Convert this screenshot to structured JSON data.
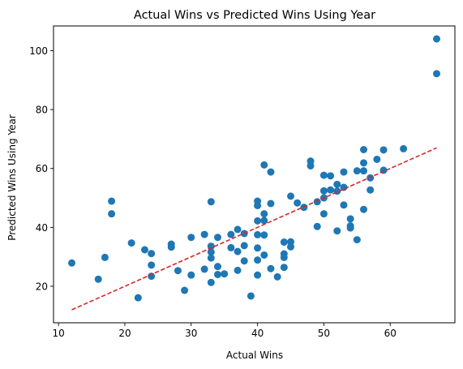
{
  "chart_data": {
    "type": "scatter",
    "title": "Actual Wins vs Predicted Wins Using Year",
    "xlabel": "Actual Wins",
    "ylabel": "Predicted Wins Using Year",
    "xlim": [
      9.25,
      69.75
    ],
    "ylim": [
      7.6,
      108.4
    ],
    "xticks": [
      10,
      20,
      30,
      40,
      50,
      60
    ],
    "yticks": [
      20,
      40,
      60,
      80,
      100
    ],
    "grid": false,
    "colors": {
      "points": "#1f77b4",
      "reference_line": "#d62728"
    },
    "points": [
      [
        12,
        27.9
      ],
      [
        16,
        22.4
      ],
      [
        17,
        29.8
      ],
      [
        18,
        48.9
      ],
      [
        18,
        44.6
      ],
      [
        21,
        34.7
      ],
      [
        22,
        16.1
      ],
      [
        23,
        32.4
      ],
      [
        24,
        31.1
      ],
      [
        24,
        27.2
      ],
      [
        24,
        23.4
      ],
      [
        27,
        34.3
      ],
      [
        27,
        33.3
      ],
      [
        28,
        25.3
      ],
      [
        29,
        18.6
      ],
      [
        30,
        36.6
      ],
      [
        30,
        23.8
      ],
      [
        32,
        37.6
      ],
      [
        32,
        25.8
      ],
      [
        33,
        48.7
      ],
      [
        33,
        33.6
      ],
      [
        33,
        31.6
      ],
      [
        33,
        29.6
      ],
      [
        33,
        21.3
      ],
      [
        34,
        36.6
      ],
      [
        34,
        26.7
      ],
      [
        34,
        24.0
      ],
      [
        35,
        24.2
      ],
      [
        36,
        37.6
      ],
      [
        36,
        33.1
      ],
      [
        37,
        39.3
      ],
      [
        37,
        31.8
      ],
      [
        37,
        25.4
      ],
      [
        38,
        37.9
      ],
      [
        38,
        33.8
      ],
      [
        38,
        28.6
      ],
      [
        39,
        16.7
      ],
      [
        40,
        48.9
      ],
      [
        40,
        47.4
      ],
      [
        40,
        42.2
      ],
      [
        40,
        37.5
      ],
      [
        40,
        33.0
      ],
      [
        40,
        28.9
      ],
      [
        40,
        23.8
      ],
      [
        41,
        61.2
      ],
      [
        41,
        44.6
      ],
      [
        41,
        42.3
      ],
      [
        41,
        37.4
      ],
      [
        41,
        30.6
      ],
      [
        42,
        58.8
      ],
      [
        42,
        48.1
      ],
      [
        42,
        26.0
      ],
      [
        43,
        23.2
      ],
      [
        44,
        35.0
      ],
      [
        44,
        31.0
      ],
      [
        44,
        29.8
      ],
      [
        44,
        26.4
      ],
      [
        45,
        50.6
      ],
      [
        45,
        35.1
      ],
      [
        45,
        33.4
      ],
      [
        46,
        48.3
      ],
      [
        47,
        46.8
      ],
      [
        48,
        62.5
      ],
      [
        48,
        60.9
      ],
      [
        49,
        48.7
      ],
      [
        49,
        40.3
      ],
      [
        50,
        57.7
      ],
      [
        50,
        52.4
      ],
      [
        50,
        50.0
      ],
      [
        50,
        44.6
      ],
      [
        51,
        57.5
      ],
      [
        51,
        52.7
      ],
      [
        52,
        54.6
      ],
      [
        52,
        52.3
      ],
      [
        52,
        38.8
      ],
      [
        53,
        58.8
      ],
      [
        53,
        53.6
      ],
      [
        53,
        47.6
      ],
      [
        54,
        42.9
      ],
      [
        54,
        40.5
      ],
      [
        54,
        39.8
      ],
      [
        55,
        59.2
      ],
      [
        55,
        35.8
      ],
      [
        56,
        66.4
      ],
      [
        56,
        61.9
      ],
      [
        56,
        59.2
      ],
      [
        56,
        46.1
      ],
      [
        57,
        56.8
      ],
      [
        57,
        52.7
      ],
      [
        58,
        63.1
      ],
      [
        59,
        66.3
      ],
      [
        59,
        59.4
      ],
      [
        62,
        66.7
      ],
      [
        67,
        104.0
      ],
      [
        67,
        92.2
      ]
    ],
    "reference_line": {
      "style": "dashed",
      "x": [
        12,
        67
      ],
      "y": [
        12,
        67
      ]
    }
  }
}
